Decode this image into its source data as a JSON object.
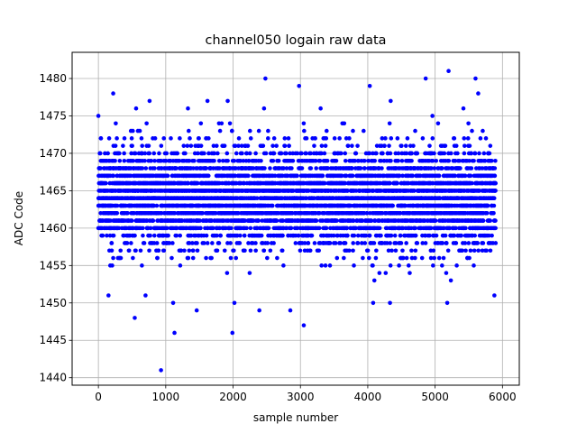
{
  "chart_data": {
    "type": "scatter",
    "title": "channel050 logain raw data",
    "xlabel": "sample number",
    "ylabel": "ADC Code",
    "xlim": [
      -390,
      6250
    ],
    "ylim": [
      1439,
      1483.5
    ],
    "xticks": [
      0,
      1000,
      2000,
      3000,
      4000,
      5000,
      6000
    ],
    "yticks": [
      1440,
      1445,
      1450,
      1455,
      1460,
      1465,
      1470,
      1475,
      1480
    ],
    "grid": true,
    "legend": "none",
    "marker_color": "#0000ff",
    "sample_count": 5900,
    "baseline_mean": 1464,
    "baseline_sd": 3.3,
    "outliers": [
      {
        "x": 930,
        "y": 1441
      },
      {
        "x": 1130,
        "y": 1446
      },
      {
        "x": 1990,
        "y": 1446
      },
      {
        "x": 540,
        "y": 1448
      },
      {
        "x": 3050,
        "y": 1447
      },
      {
        "x": 1460,
        "y": 1449
      },
      {
        "x": 2390,
        "y": 1449
      },
      {
        "x": 2850,
        "y": 1449
      },
      {
        "x": 4330,
        "y": 1450
      },
      {
        "x": 5180,
        "y": 1450
      },
      {
        "x": 1110,
        "y": 1450
      },
      {
        "x": 2020,
        "y": 1450
      },
      {
        "x": 4080,
        "y": 1450
      },
      {
        "x": 150,
        "y": 1451
      },
      {
        "x": 700,
        "y": 1451
      },
      {
        "x": 5880,
        "y": 1451
      },
      {
        "x": 2480,
        "y": 1480
      },
      {
        "x": 4860,
        "y": 1480
      },
      {
        "x": 5600,
        "y": 1480
      },
      {
        "x": 5200,
        "y": 1481
      },
      {
        "x": 2980,
        "y": 1479
      },
      {
        "x": 4030,
        "y": 1479
      },
      {
        "x": 220,
        "y": 1478
      },
      {
        "x": 5640,
        "y": 1478
      },
      {
        "x": 760,
        "y": 1477
      },
      {
        "x": 1620,
        "y": 1477
      },
      {
        "x": 1920,
        "y": 1477
      },
      {
        "x": 4340,
        "y": 1477
      },
      {
        "x": 1330,
        "y": 1476
      },
      {
        "x": 2460,
        "y": 1476
      },
      {
        "x": 3300,
        "y": 1476
      },
      {
        "x": 5420,
        "y": 1476
      },
      {
        "x": 0,
        "y": 1475
      },
      {
        "x": 560,
        "y": 1476
      },
      {
        "x": 4960,
        "y": 1475
      }
    ]
  }
}
